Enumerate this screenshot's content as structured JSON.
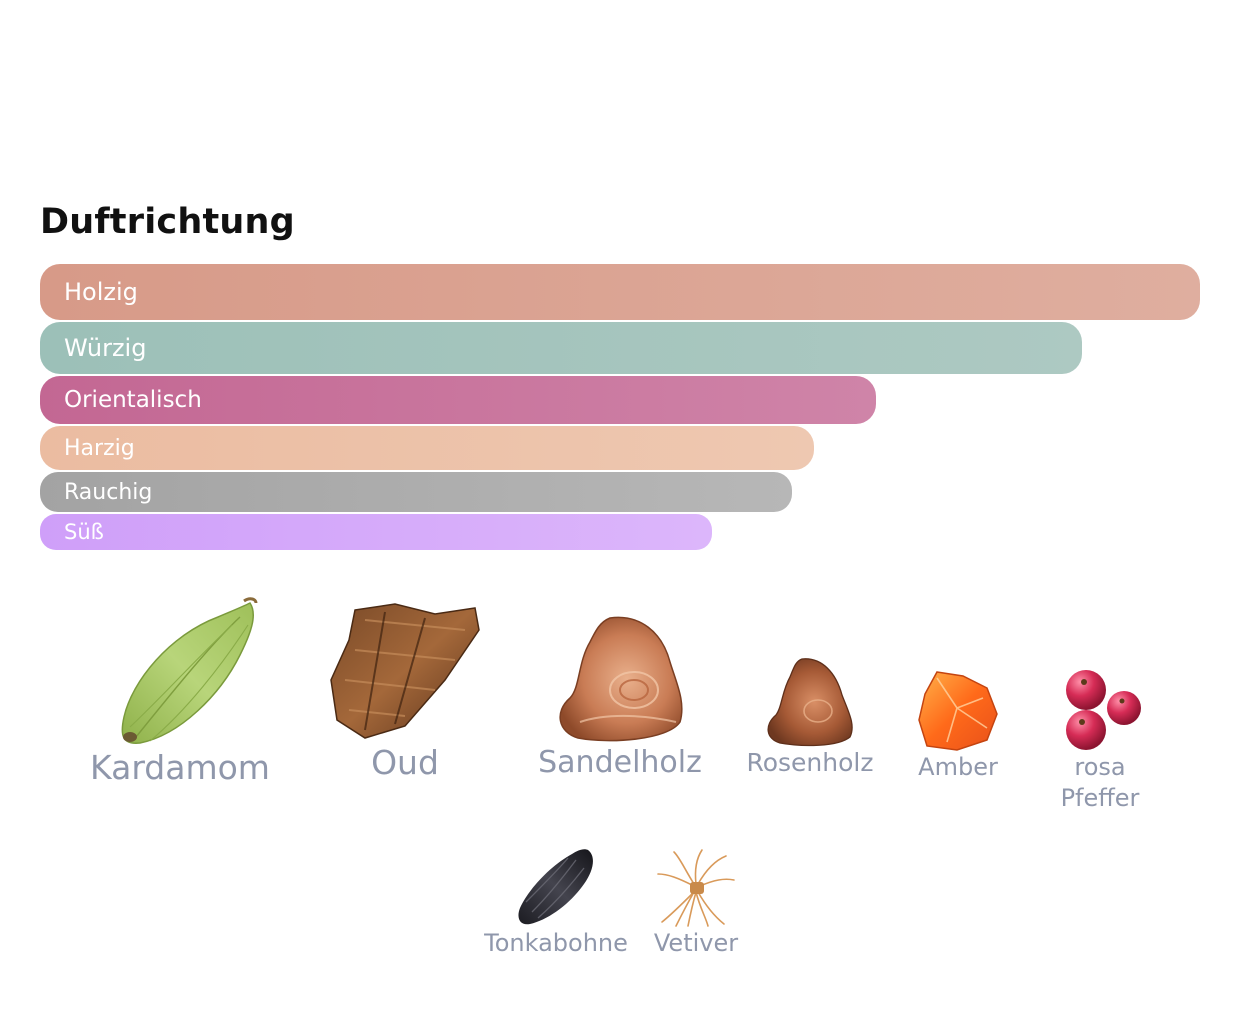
{
  "accords_section": {
    "title": "Duftrichtung",
    "accords": [
      {
        "label": "Holzig",
        "strength": 1.0,
        "color_start": "#d79a88",
        "color_end": "#dfae9f"
      },
      {
        "label": "Würzig",
        "strength": 0.898,
        "color_start": "#9cc0b8",
        "color_end": "#adc9c2"
      },
      {
        "label": "Orientalisch",
        "strength": 0.721,
        "color_start": "#c36793",
        "color_end": "#cf84a8"
      },
      {
        "label": "Harzig",
        "strength": 0.667,
        "color_start": "#ebbca1",
        "color_end": "#eec8b1"
      },
      {
        "label": "Rauchig",
        "strength": 0.648,
        "color_start": "#a3a3a3",
        "color_end": "#b7b7b7"
      },
      {
        "label": "Süß",
        "strength": 0.579,
        "color_start": "#cf9ff9",
        "color_end": "#dcb6fb"
      }
    ]
  },
  "notes": [
    {
      "label": "Kardamom",
      "icon": "cardamom-pod-icon"
    },
    {
      "label": "Oud",
      "icon": "oud-wood-icon"
    },
    {
      "label": "Sandelholz",
      "icon": "sandalwood-icon"
    },
    {
      "label": "Rosenholz",
      "icon": "rosewood-icon"
    },
    {
      "label": "Amber",
      "icon": "amber-resin-icon"
    },
    {
      "label": "rosa",
      "label_line2": "Pfeffer",
      "icon": "pink-pepper-icon"
    },
    {
      "label": "Tonkabohne",
      "icon": "tonka-bean-icon"
    },
    {
      "label": "Vetiver",
      "icon": "vetiver-root-icon"
    }
  ]
}
